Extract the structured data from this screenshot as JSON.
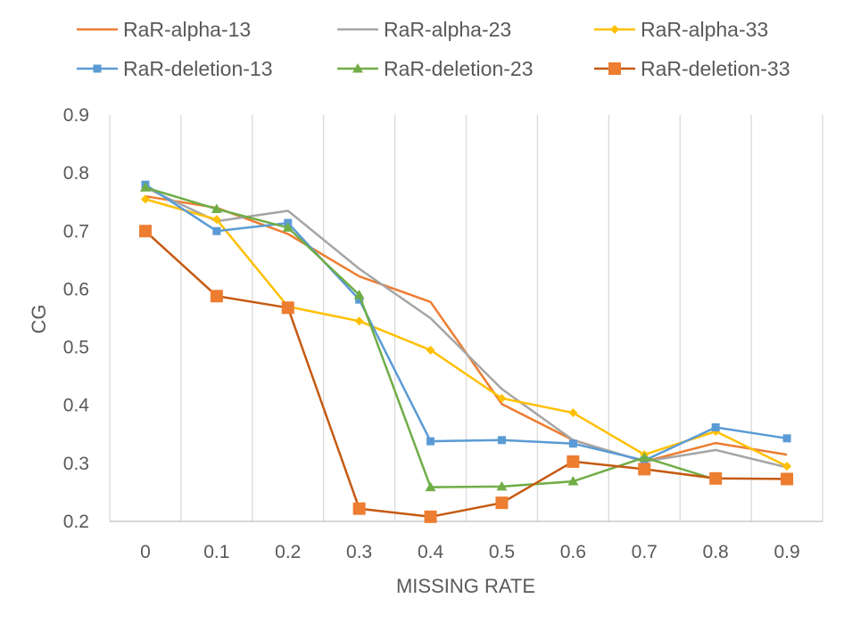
{
  "chart_data": {
    "type": "line",
    "title": "",
    "xlabel": "MISSING RATE",
    "ylabel": "CG",
    "categories": [
      "0",
      "0.1",
      "0.2",
      "0.3",
      "0.4",
      "0.5",
      "0.6",
      "0.7",
      "0.8",
      "0.9"
    ],
    "y_ticks": [
      "0.2",
      "0.3",
      "0.4",
      "0.5",
      "0.6",
      "0.7",
      "0.8",
      "0.9"
    ],
    "ylim": [
      0.2,
      0.9
    ],
    "grid": "vertical",
    "legend_position": "top",
    "series": [
      {
        "name": "RaR-alpha-13",
        "color": "#ED7D31",
        "marker": "none",
        "values": [
          0.76,
          0.74,
          0.695,
          0.622,
          0.578,
          0.402,
          0.34,
          0.303,
          0.335,
          0.315
        ]
      },
      {
        "name": "RaR-alpha-23",
        "color": "#A5A5A5",
        "marker": "none",
        "values": [
          0.775,
          0.717,
          0.735,
          0.635,
          0.55,
          0.428,
          0.34,
          0.303,
          0.323,
          0.293
        ]
      },
      {
        "name": "RaR-alpha-33",
        "color": "#FFC000",
        "marker": "diamond",
        "values": [
          0.755,
          0.72,
          0.57,
          0.545,
          0.495,
          0.412,
          0.387,
          0.315,
          0.355,
          0.295
        ]
      },
      {
        "name": "RaR-deletion-13",
        "color": "#5B9BD5",
        "marker": "square",
        "values": [
          0.78,
          0.7,
          0.714,
          0.582,
          0.338,
          0.34,
          0.334,
          0.305,
          0.362,
          0.343
        ]
      },
      {
        "name": "RaR-deletion-23",
        "color": "#70AD47",
        "marker": "triangle",
        "values": [
          0.775,
          0.738,
          0.706,
          0.59,
          0.259,
          0.26,
          0.269,
          0.31,
          0.272,
          null
        ]
      },
      {
        "name": "RaR-deletion-33",
        "color": "#C55A11",
        "marker": "square-large",
        "markerFill": "#ED7D31",
        "values": [
          0.7,
          0.588,
          0.568,
          0.222,
          0.208,
          0.232,
          0.303,
          0.29,
          0.274,
          0.273
        ]
      }
    ]
  }
}
